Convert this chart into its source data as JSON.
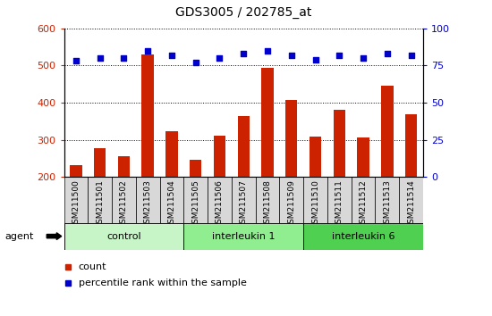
{
  "title": "GDS3005 / 202785_at",
  "samples": [
    "GSM211500",
    "GSM211501",
    "GSM211502",
    "GSM211503",
    "GSM211504",
    "GSM211505",
    "GSM211506",
    "GSM211507",
    "GSM211508",
    "GSM211509",
    "GSM211510",
    "GSM211511",
    "GSM211512",
    "GSM211513",
    "GSM211514"
  ],
  "counts": [
    232,
    278,
    257,
    530,
    323,
    247,
    310,
    365,
    493,
    407,
    308,
    380,
    307,
    447,
    370
  ],
  "percentile_ranks": [
    78,
    80,
    80,
    85,
    82,
    77,
    80,
    83,
    85,
    82,
    79,
    82,
    80,
    83,
    82
  ],
  "groups": [
    {
      "label": "control",
      "start": 0,
      "end": 4,
      "color": "#c8f5c8"
    },
    {
      "label": "interleukin 1",
      "start": 5,
      "end": 9,
      "color": "#90ee90"
    },
    {
      "label": "interleukin 6",
      "start": 10,
      "end": 14,
      "color": "#50d050"
    }
  ],
  "ylim_left": [
    200,
    600
  ],
  "ylim_right": [
    0,
    100
  ],
  "bar_color": "#cc2200",
  "dot_color": "#0000cc",
  "background_color": "#ffffff",
  "left_tick_color": "#cc2200",
  "right_tick_color": "#0000cc",
  "agent_label": "agent",
  "legend_count": "count",
  "legend_percentile": "percentile rank within the sample",
  "yticks_left": [
    200,
    300,
    400,
    500,
    600
  ],
  "yticks_right": [
    0,
    25,
    50,
    75,
    100
  ]
}
